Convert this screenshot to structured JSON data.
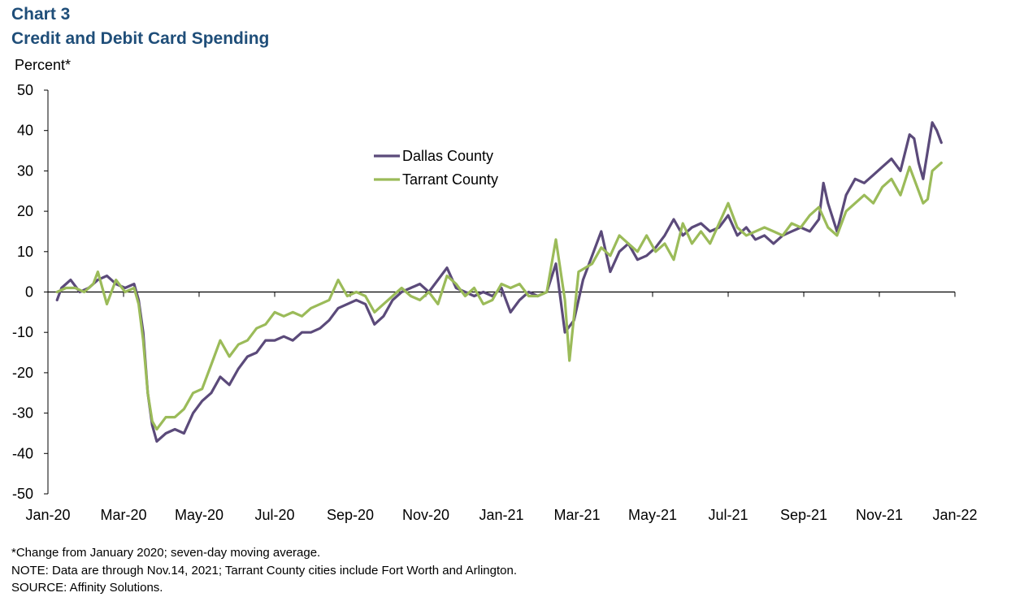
{
  "chart_label": "Chart 3",
  "chart_title": "Credit and Debit Card Spending",
  "footnote": "*Change from January 2020; seven-day moving average.",
  "note": "NOTE:  Data are through Nov.14, 2021; Tarrant County cities include Fort Worth and Arlington.",
  "source": "SOURCE:  Affinity Solutions.",
  "chart_data": {
    "type": "line",
    "title": "Credit and Debit Card Spending",
    "xlabel": "",
    "ylabel": "Percent*",
    "ylim": [
      -50,
      50
    ],
    "yticks": [
      50,
      40,
      30,
      20,
      10,
      0,
      -10,
      -20,
      -30,
      -40,
      -50
    ],
    "xlim": [
      2020.0,
      2022.0
    ],
    "xticks": [
      {
        "label": "Jan-20",
        "x": 2020.0
      },
      {
        "label": "Mar-20",
        "x": 2020.1667
      },
      {
        "label": "May-20",
        "x": 2020.3333
      },
      {
        "label": "Jul-20",
        "x": 2020.5
      },
      {
        "label": "Sep-20",
        "x": 2020.6667
      },
      {
        "label": "Nov-20",
        "x": 2020.8333
      },
      {
        "label": "Jan-21",
        "x": 2021.0
      },
      {
        "label": "Mar-21",
        "x": 2021.1667
      },
      {
        "label": "May-21",
        "x": 2021.3333
      },
      {
        "label": "Jul-21",
        "x": 2021.5
      },
      {
        "label": "Sep-21",
        "x": 2021.6667
      },
      {
        "label": "Nov-21",
        "x": 2021.8333
      },
      {
        "label": "Jan-22",
        "x": 2022.0
      }
    ],
    "legend_position": "upper-center",
    "series": [
      {
        "name": "Dallas County",
        "color": "#5b4a7a",
        "points": [
          [
            2020.02,
            -2
          ],
          [
            2020.03,
            1
          ],
          [
            2020.05,
            3
          ],
          [
            2020.07,
            0
          ],
          [
            2020.09,
            1
          ],
          [
            2020.11,
            3
          ],
          [
            2020.13,
            4
          ],
          [
            2020.15,
            2
          ],
          [
            2020.17,
            1
          ],
          [
            2020.19,
            2
          ],
          [
            2020.2,
            -2
          ],
          [
            2020.21,
            -10
          ],
          [
            2020.22,
            -25
          ],
          [
            2020.23,
            -33
          ],
          [
            2020.24,
            -37
          ],
          [
            2020.26,
            -35
          ],
          [
            2020.28,
            -34
          ],
          [
            2020.3,
            -35
          ],
          [
            2020.32,
            -30
          ],
          [
            2020.34,
            -27
          ],
          [
            2020.36,
            -25
          ],
          [
            2020.38,
            -21
          ],
          [
            2020.4,
            -23
          ],
          [
            2020.42,
            -19
          ],
          [
            2020.44,
            -16
          ],
          [
            2020.46,
            -15
          ],
          [
            2020.48,
            -12
          ],
          [
            2020.5,
            -12
          ],
          [
            2020.52,
            -11
          ],
          [
            2020.54,
            -12
          ],
          [
            2020.56,
            -10
          ],
          [
            2020.58,
            -10
          ],
          [
            2020.6,
            -9
          ],
          [
            2020.62,
            -7
          ],
          [
            2020.64,
            -4
          ],
          [
            2020.66,
            -3
          ],
          [
            2020.68,
            -2
          ],
          [
            2020.7,
            -3
          ],
          [
            2020.72,
            -8
          ],
          [
            2020.74,
            -6
          ],
          [
            2020.76,
            -2
          ],
          [
            2020.78,
            0
          ],
          [
            2020.8,
            1
          ],
          [
            2020.82,
            2
          ],
          [
            2020.84,
            0
          ],
          [
            2020.86,
            3
          ],
          [
            2020.88,
            6
          ],
          [
            2020.9,
            1
          ],
          [
            2020.92,
            0
          ],
          [
            2020.94,
            -1
          ],
          [
            2020.96,
            0
          ],
          [
            2020.98,
            -1
          ],
          [
            2021.0,
            1
          ],
          [
            2021.02,
            -5
          ],
          [
            2021.04,
            -2
          ],
          [
            2021.06,
            0
          ],
          [
            2021.08,
            -1
          ],
          [
            2021.1,
            0
          ],
          [
            2021.12,
            7
          ],
          [
            2021.14,
            -10
          ],
          [
            2021.16,
            -7
          ],
          [
            2021.18,
            3
          ],
          [
            2021.2,
            9
          ],
          [
            2021.22,
            15
          ],
          [
            2021.24,
            5
          ],
          [
            2021.26,
            10
          ],
          [
            2021.28,
            12
          ],
          [
            2021.3,
            8
          ],
          [
            2021.32,
            9
          ],
          [
            2021.34,
            11
          ],
          [
            2021.36,
            14
          ],
          [
            2021.38,
            18
          ],
          [
            2021.4,
            14
          ],
          [
            2021.42,
            16
          ],
          [
            2021.44,
            17
          ],
          [
            2021.46,
            15
          ],
          [
            2021.48,
            16
          ],
          [
            2021.5,
            19
          ],
          [
            2021.52,
            14
          ],
          [
            2021.54,
            16
          ],
          [
            2021.56,
            13
          ],
          [
            2021.58,
            14
          ],
          [
            2021.6,
            12
          ],
          [
            2021.62,
            14
          ],
          [
            2021.64,
            15
          ],
          [
            2021.66,
            16
          ],
          [
            2021.68,
            15
          ],
          [
            2021.7,
            18
          ],
          [
            2021.71,
            27
          ],
          [
            2021.72,
            22
          ],
          [
            2021.74,
            15
          ],
          [
            2021.76,
            24
          ],
          [
            2021.78,
            28
          ],
          [
            2021.8,
            27
          ],
          [
            2021.82,
            29
          ],
          [
            2021.84,
            31
          ],
          [
            2021.86,
            33
          ],
          [
            2021.88,
            30
          ],
          [
            2021.9,
            39
          ],
          [
            2021.91,
            38
          ],
          [
            2021.92,
            32
          ],
          [
            2021.93,
            28
          ],
          [
            2021.94,
            35
          ],
          [
            2021.95,
            42
          ],
          [
            2021.96,
            40
          ],
          [
            2021.97,
            37
          ]
        ]
      },
      {
        "name": "Tarrant County",
        "color": "#9bbb59",
        "points": [
          [
            2020.02,
            0
          ],
          [
            2020.04,
            1
          ],
          [
            2020.06,
            1
          ],
          [
            2020.08,
            0
          ],
          [
            2020.1,
            2
          ],
          [
            2020.11,
            5
          ],
          [
            2020.13,
            -3
          ],
          [
            2020.15,
            3
          ],
          [
            2020.17,
            0
          ],
          [
            2020.19,
            1
          ],
          [
            2020.2,
            -3
          ],
          [
            2020.21,
            -12
          ],
          [
            2020.22,
            -25
          ],
          [
            2020.23,
            -32
          ],
          [
            2020.24,
            -34
          ],
          [
            2020.26,
            -31
          ],
          [
            2020.28,
            -31
          ],
          [
            2020.3,
            -29
          ],
          [
            2020.32,
            -25
          ],
          [
            2020.34,
            -24
          ],
          [
            2020.36,
            -18
          ],
          [
            2020.38,
            -12
          ],
          [
            2020.4,
            -16
          ],
          [
            2020.42,
            -13
          ],
          [
            2020.44,
            -12
          ],
          [
            2020.46,
            -9
          ],
          [
            2020.48,
            -8
          ],
          [
            2020.5,
            -5
          ],
          [
            2020.52,
            -6
          ],
          [
            2020.54,
            -5
          ],
          [
            2020.56,
            -6
          ],
          [
            2020.58,
            -4
          ],
          [
            2020.6,
            -3
          ],
          [
            2020.62,
            -2
          ],
          [
            2020.64,
            3
          ],
          [
            2020.66,
            -1
          ],
          [
            2020.68,
            0
          ],
          [
            2020.7,
            -1
          ],
          [
            2020.72,
            -5
          ],
          [
            2020.74,
            -3
          ],
          [
            2020.76,
            -1
          ],
          [
            2020.78,
            1
          ],
          [
            2020.8,
            -1
          ],
          [
            2020.82,
            -2
          ],
          [
            2020.84,
            0
          ],
          [
            2020.86,
            -3
          ],
          [
            2020.88,
            4
          ],
          [
            2020.9,
            2
          ],
          [
            2020.92,
            -1
          ],
          [
            2020.94,
            1
          ],
          [
            2020.96,
            -3
          ],
          [
            2020.98,
            -2
          ],
          [
            2021.0,
            2
          ],
          [
            2021.02,
            1
          ],
          [
            2021.04,
            2
          ],
          [
            2021.06,
            -1
          ],
          [
            2021.08,
            -1
          ],
          [
            2021.1,
            0
          ],
          [
            2021.12,
            13
          ],
          [
            2021.14,
            -2
          ],
          [
            2021.15,
            -17
          ],
          [
            2021.17,
            5
          ],
          [
            2021.2,
            7
          ],
          [
            2021.22,
            11
          ],
          [
            2021.24,
            9
          ],
          [
            2021.26,
            14
          ],
          [
            2021.28,
            12
          ],
          [
            2021.3,
            10
          ],
          [
            2021.32,
            14
          ],
          [
            2021.34,
            10
          ],
          [
            2021.36,
            12
          ],
          [
            2021.38,
            8
          ],
          [
            2021.4,
            17
          ],
          [
            2021.42,
            12
          ],
          [
            2021.44,
            15
          ],
          [
            2021.46,
            12
          ],
          [
            2021.48,
            17
          ],
          [
            2021.5,
            22
          ],
          [
            2021.52,
            16
          ],
          [
            2021.54,
            14
          ],
          [
            2021.56,
            15
          ],
          [
            2021.58,
            16
          ],
          [
            2021.6,
            15
          ],
          [
            2021.62,
            14
          ],
          [
            2021.64,
            17
          ],
          [
            2021.66,
            16
          ],
          [
            2021.68,
            19
          ],
          [
            2021.7,
            21
          ],
          [
            2021.72,
            16
          ],
          [
            2021.74,
            14
          ],
          [
            2021.76,
            20
          ],
          [
            2021.78,
            22
          ],
          [
            2021.8,
            24
          ],
          [
            2021.82,
            22
          ],
          [
            2021.84,
            26
          ],
          [
            2021.86,
            28
          ],
          [
            2021.88,
            24
          ],
          [
            2021.9,
            31
          ],
          [
            2021.91,
            28
          ],
          [
            2021.92,
            25
          ],
          [
            2021.93,
            22
          ],
          [
            2021.94,
            23
          ],
          [
            2021.95,
            30
          ],
          [
            2021.96,
            31
          ],
          [
            2021.97,
            32
          ]
        ]
      }
    ]
  }
}
